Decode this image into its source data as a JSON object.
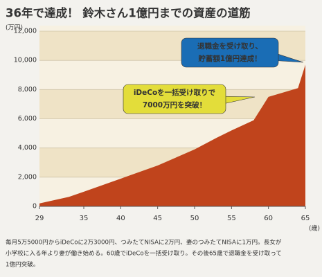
{
  "chart_data": {
    "type": "area",
    "title": "36年で達成！ 鈴木さん1億円までの資産の道筋",
    "y_unit": "(万円)",
    "x_unit": "(歳)",
    "x": [
      29,
      33,
      35,
      40,
      45,
      50,
      53,
      55,
      58,
      60,
      64,
      65
    ],
    "values": [
      200,
      650,
      1000,
      1900,
      2800,
      3900,
      4700,
      5200,
      5900,
      7500,
      8100,
      9700
    ],
    "color": "#c0441c",
    "xlim": [
      29,
      65
    ],
    "xticks": [
      29,
      35,
      40,
      45,
      50,
      55,
      60,
      65
    ],
    "ylim": [
      0,
      12000
    ],
    "yticks": [
      0,
      {
        "value": 2000,
        "label": "2,000"
      },
      {
        "value": 4000,
        "label": "4,000"
      },
      {
        "value": 6000,
        "label": "6,000"
      },
      {
        "value": 8000,
        "label": "8,000"
      },
      {
        "value": 10000,
        "label": "10,000"
      },
      {
        "value": 12000,
        "label": "12,000"
      }
    ],
    "annotations": [
      {
        "lines": [
          "退職金を受け取り、",
          "貯蓄額1億円達成！"
        ],
        "color": "#1a6db5"
      },
      {
        "lines": [
          "iDeCoを一括受け取りで",
          "7000万円を突破！"
        ],
        "color": "#e3dd3a"
      }
    ],
    "caption": [
      "毎月5万5000円からiDeCoに2万3000円、つみたてNISAに2万円、妻のつみたてNISAに1万円。長女が",
      "小学校に入る年より妻が働き始める。60歳でiDeCoを一括受け取り。その後65歳で退職金を受け取って",
      "1億円突破。"
    ]
  }
}
